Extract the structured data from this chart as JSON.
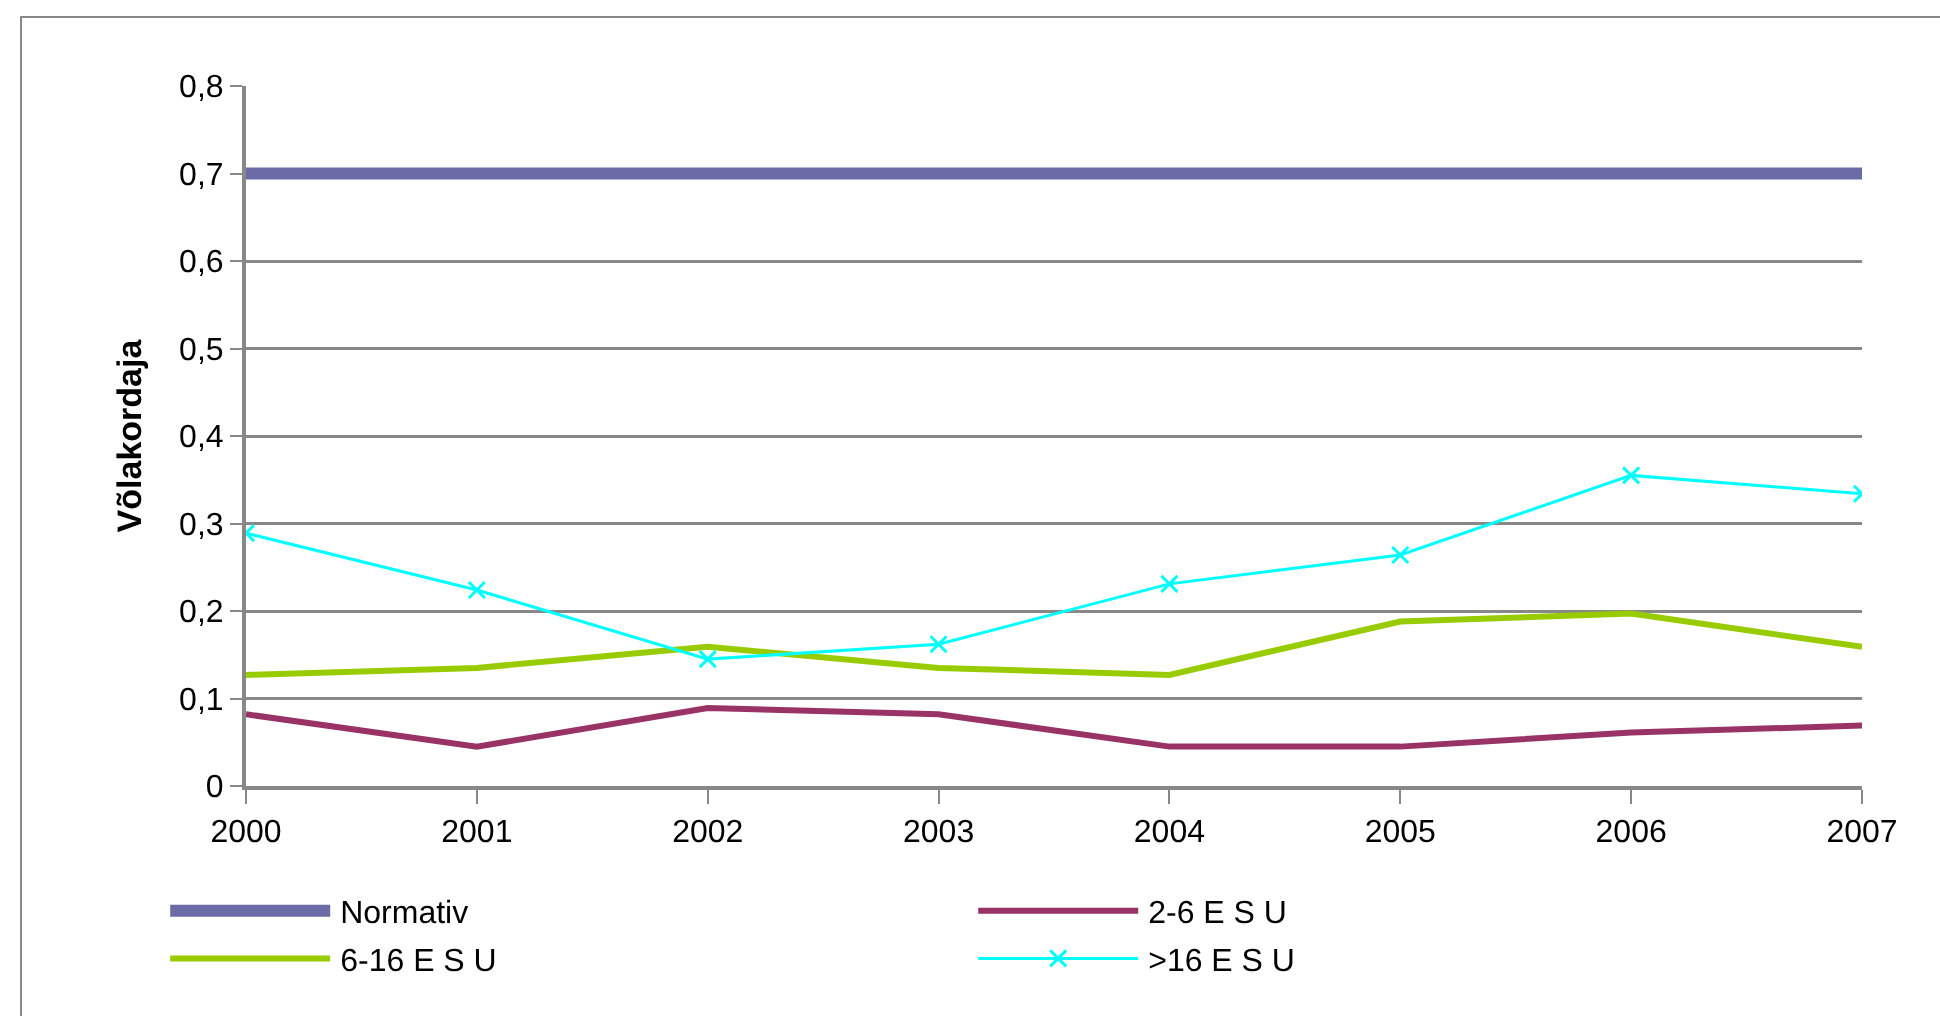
{
  "chart_data": {
    "type": "line",
    "ylabel": "Võlakordaja",
    "categories": [
      "2000",
      "2001",
      "2002",
      "2003",
      "2004",
      "2005",
      "2006",
      "2007"
    ],
    "series": [
      {
        "name": "Normativ",
        "color": "#6b6ba8",
        "values": [
          0.7,
          0.7,
          0.7,
          0.7,
          0.7,
          0.7,
          0.7,
          0.7
        ]
      },
      {
        "name": "2-6 E S U",
        "color": "#993366",
        "values": [
          0.082,
          0.045,
          0.089,
          0.082,
          0.045,
          0.045,
          0.061,
          0.069
        ]
      },
      {
        "name": "6-16 E S U",
        "color": "#99cc00",
        "values": [
          0.127,
          0.135,
          0.159,
          0.135,
          0.127,
          0.188,
          0.197,
          0.159
        ]
      },
      {
        "name": ">16 E S U",
        "color": "#00ffff",
        "marker": "cross",
        "values": [
          0.289,
          0.224,
          0.145,
          0.162,
          0.231,
          0.264,
          0.355,
          0.334
        ]
      }
    ],
    "ylim": [
      0,
      0.8
    ],
    "yticks": [
      {
        "value": 0,
        "label": "0"
      },
      {
        "value": 0.1,
        "label": "0,1"
      },
      {
        "value": 0.2,
        "label": "0,2"
      },
      {
        "value": 0.3,
        "label": "0,3"
      },
      {
        "value": 0.4,
        "label": "0,4"
      },
      {
        "value": 0.5,
        "label": "0,5"
      },
      {
        "value": 0.6,
        "label": "0,6"
      },
      {
        "value": 0.7,
        "label": "0,7"
      },
      {
        "value": 0.8,
        "label": "0,8"
      }
    ],
    "grid": "y",
    "legend": "bottom"
  }
}
